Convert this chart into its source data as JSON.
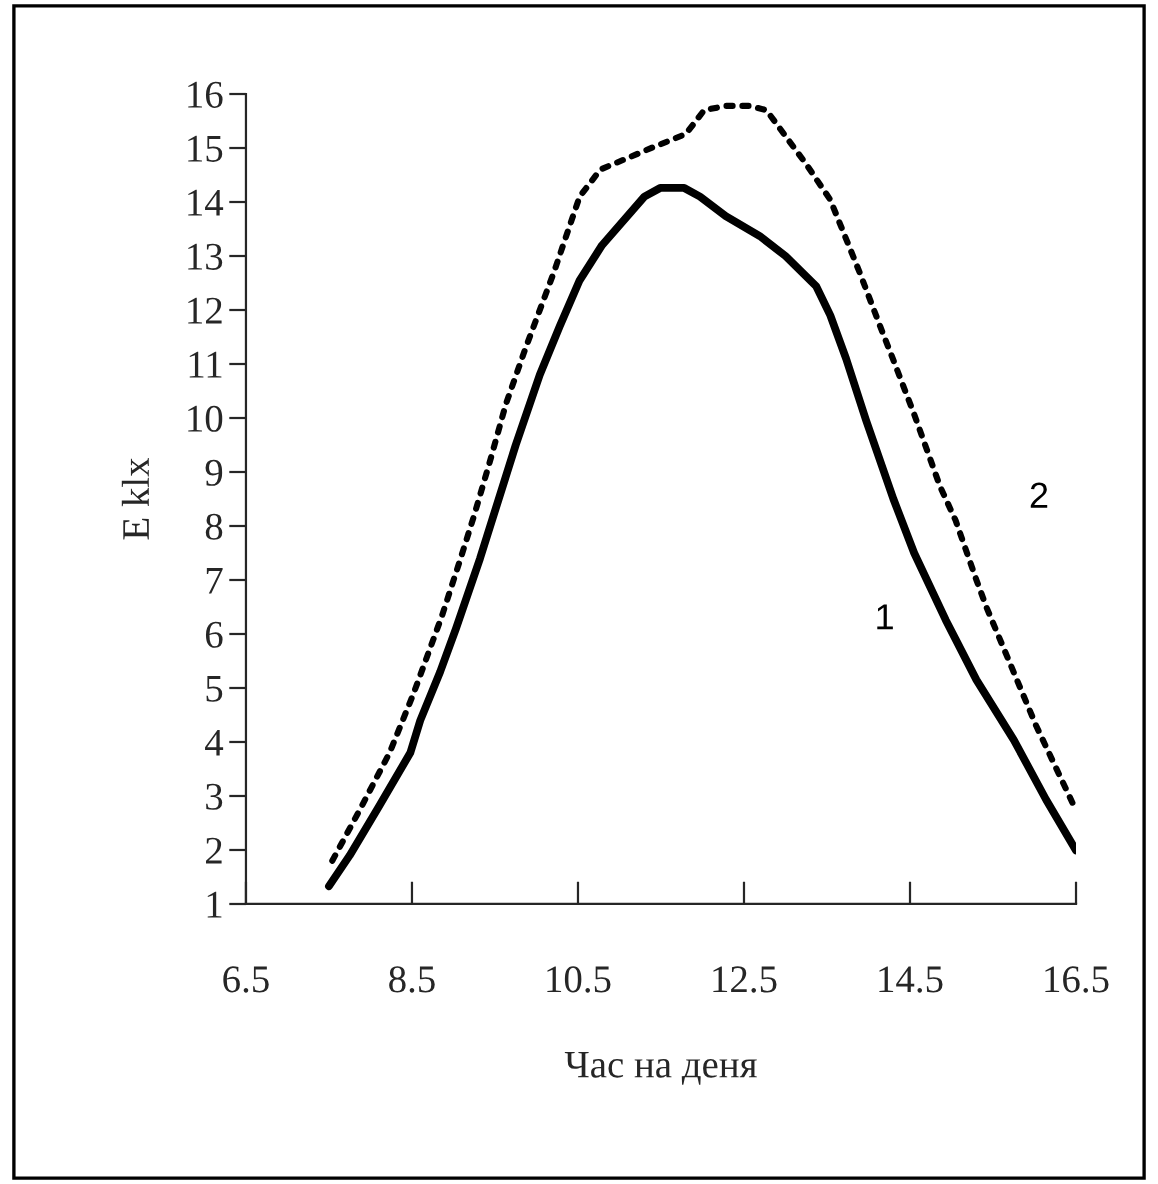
{
  "chart_data": {
    "type": "line",
    "xlabel": "Час на деня",
    "ylabel": "E klx",
    "xlim": [
      6.5,
      16.5
    ],
    "xticks": [
      6.5,
      8.5,
      10.5,
      12.5,
      14.5,
      16.5
    ],
    "ylim": [
      1,
      16
    ],
    "yticks": [
      1,
      2,
      3,
      4,
      5,
      6,
      7,
      8,
      9,
      10,
      11,
      12,
      13,
      14,
      15,
      16
    ],
    "grid": false,
    "legend": false,
    "series": [
      {
        "name": "1",
        "color": "#000000",
        "line_style": "solid",
        "x": [
          7.5,
          7.75,
          8.1,
          8.48,
          8.6,
          8.84,
          9.03,
          9.32,
          9.75,
          10.04,
          10.28,
          10.52,
          10.79,
          11.3,
          11.49,
          11.78,
          11.97,
          12.28,
          12.69,
          13.0,
          13.37,
          13.54,
          13.73,
          13.97,
          14.3,
          14.55,
          14.93,
          15.05,
          15.3,
          15.75,
          16.14,
          16.5
        ],
        "values": [
          1.33,
          1.9,
          2.8,
          3.8,
          4.4,
          5.3,
          6.1,
          7.4,
          9.5,
          10.8,
          11.7,
          12.55,
          13.2,
          14.1,
          14.26,
          14.26,
          14.1,
          13.74,
          13.37,
          13.0,
          12.44,
          11.9,
          11.1,
          9.96,
          8.5,
          7.5,
          6.26,
          5.9,
          5.15,
          4.04,
          2.93,
          1.99
        ]
      },
      {
        "name": "2",
        "color": "#000000",
        "line_style": "dotted",
        "x": [
          7.54,
          7.87,
          8.23,
          8.52,
          8.86,
          9.08,
          9.25,
          9.44,
          9.63,
          9.87,
          10.21,
          10.52,
          10.77,
          11.32,
          11.8,
          12.02,
          12.28,
          12.57,
          12.77,
          13.25,
          13.54,
          13.9,
          14.14,
          14.3,
          14.55,
          14.86,
          15.05,
          15.3,
          15.42,
          16.02,
          16.48
        ],
        "values": [
          1.8,
          2.74,
          3.8,
          4.9,
          6.33,
          7.37,
          8.2,
          9.2,
          10.25,
          11.3,
          12.7,
          14.1,
          14.6,
          14.96,
          15.26,
          15.7,
          15.78,
          15.78,
          15.7,
          14.7,
          14.04,
          12.67,
          11.7,
          11.07,
          10.07,
          8.74,
          8.1,
          7.0,
          6.5,
          4.3,
          2.8
        ]
      }
    ]
  }
}
